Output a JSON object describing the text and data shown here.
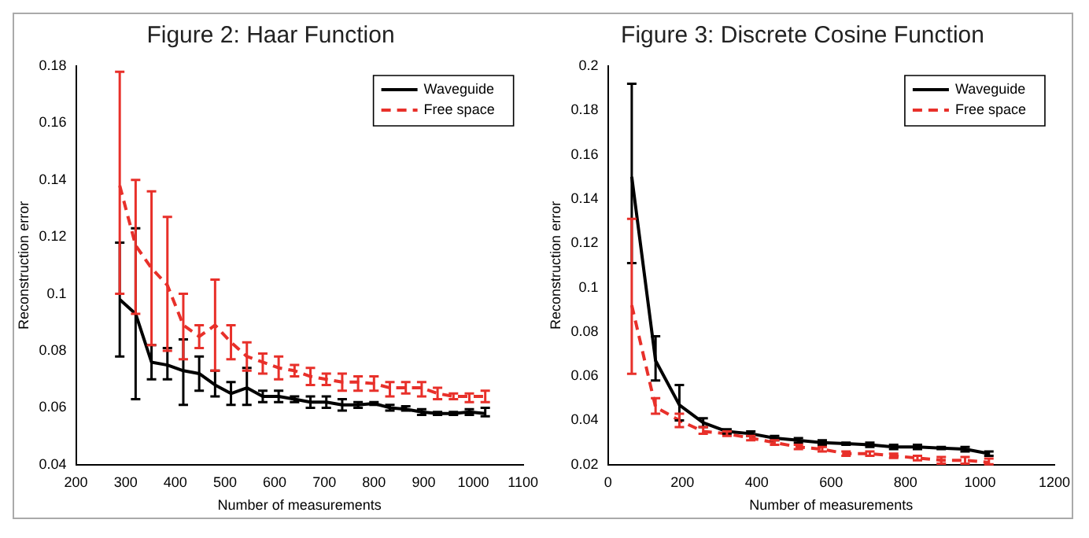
{
  "chart_data": [
    {
      "type": "line",
      "title": "Figure 2: Haar Function",
      "xlabel": "Number of measurements",
      "ylabel": "Reconstruction error",
      "xlim": [
        200,
        1100
      ],
      "xticks": [
        200,
        300,
        400,
        500,
        600,
        700,
        800,
        900,
        1000,
        1100
      ],
      "ylim": [
        0.04,
        0.18
      ],
      "yticks": [
        0.04,
        0.06,
        0.08,
        0.1,
        0.12,
        0.14,
        0.16,
        0.18
      ],
      "grid": false,
      "legend": "top right",
      "marker": "none",
      "x": [
        288,
        320,
        352,
        384,
        416,
        448,
        480,
        512,
        544,
        576,
        608,
        640,
        672,
        704,
        736,
        768,
        800,
        832,
        864,
        896,
        928,
        960,
        992,
        1024
      ],
      "series": [
        {
          "name": "Waveguide",
          "color": "#000000",
          "line_style": "solid",
          "values": [
            0.098,
            0.093,
            0.076,
            0.075,
            0.073,
            0.072,
            0.068,
            0.065,
            0.067,
            0.064,
            0.064,
            0.063,
            0.062,
            0.062,
            0.061,
            0.061,
            0.0615,
            0.06,
            0.0595,
            0.0585,
            0.058,
            0.058,
            0.0585,
            0.058
          ],
          "errors": [
            [
              0.078,
              0.118
            ],
            [
              0.063,
              0.123
            ],
            [
              0.07,
              0.082
            ],
            [
              0.07,
              0.081
            ],
            [
              0.061,
              0.084
            ],
            [
              0.066,
              0.078
            ],
            [
              0.064,
              0.073
            ],
            [
              0.061,
              0.069
            ],
            [
              0.061,
              0.074
            ],
            [
              0.062,
              0.066
            ],
            [
              0.062,
              0.066
            ],
            [
              0.062,
              0.064
            ],
            [
              0.06,
              0.064
            ],
            [
              0.06,
              0.064
            ],
            [
              0.059,
              0.063
            ],
            [
              0.06,
              0.062
            ],
            [
              0.061,
              0.062
            ],
            [
              0.059,
              0.061
            ],
            [
              0.059,
              0.0605
            ],
            [
              0.0575,
              0.0595
            ],
            [
              0.0575,
              0.0585
            ],
            [
              0.0575,
              0.0585
            ],
            [
              0.0575,
              0.0595
            ],
            [
              0.057,
              0.06
            ]
          ]
        },
        {
          "name": "Free space",
          "color": "#e8302a",
          "line_style": "dashed",
          "values": [
            0.138,
            0.117,
            0.109,
            0.103,
            0.089,
            0.085,
            0.089,
            0.083,
            0.078,
            0.076,
            0.074,
            0.073,
            0.071,
            0.07,
            0.069,
            0.069,
            0.0685,
            0.067,
            0.067,
            0.067,
            0.065,
            0.064,
            0.064,
            0.064
          ],
          "errors": [
            [
              0.1,
              0.178
            ],
            [
              0.093,
              0.14
            ],
            [
              0.082,
              0.136
            ],
            [
              0.08,
              0.127
            ],
            [
              0.077,
              0.1
            ],
            [
              0.081,
              0.089
            ],
            [
              0.073,
              0.105
            ],
            [
              0.077,
              0.089
            ],
            [
              0.073,
              0.083
            ],
            [
              0.072,
              0.079
            ],
            [
              0.07,
              0.078
            ],
            [
              0.071,
              0.075
            ],
            [
              0.068,
              0.074
            ],
            [
              0.068,
              0.072
            ],
            [
              0.066,
              0.072
            ],
            [
              0.066,
              0.071
            ],
            [
              0.066,
              0.071
            ],
            [
              0.064,
              0.069
            ],
            [
              0.065,
              0.069
            ],
            [
              0.064,
              0.069
            ],
            [
              0.063,
              0.067
            ],
            [
              0.063,
              0.065
            ],
            [
              0.062,
              0.065
            ],
            [
              0.062,
              0.066
            ]
          ]
        }
      ]
    },
    {
      "type": "line",
      "title": "Figure 3: Discrete Cosine Function",
      "xlabel": "Number of measurements",
      "ylabel": "Reconstruction error",
      "xlim": [
        0,
        1200
      ],
      "xticks": [
        0,
        200,
        400,
        600,
        800,
        1000,
        1200
      ],
      "ylim": [
        0.02,
        0.2
      ],
      "yticks": [
        0.02,
        0.04,
        0.06,
        0.08,
        0.1,
        0.12,
        0.14,
        0.16,
        0.18,
        0.2
      ],
      "grid": false,
      "legend": "top right",
      "marker": "none",
      "x": [
        64,
        128,
        192,
        256,
        320,
        384,
        448,
        512,
        576,
        640,
        704,
        768,
        832,
        896,
        960,
        1024
      ],
      "series": [
        {
          "name": "Waveguide",
          "color": "#000000",
          "line_style": "solid",
          "values": [
            0.15,
            0.067,
            0.047,
            0.039,
            0.035,
            0.034,
            0.032,
            0.031,
            0.03,
            0.0295,
            0.029,
            0.028,
            0.028,
            0.0275,
            0.027,
            0.025
          ],
          "errors": [
            [
              0.111,
              0.192
            ],
            [
              0.058,
              0.078
            ],
            [
              0.04,
              0.056
            ],
            [
              0.037,
              0.041
            ],
            [
              0.034,
              0.036
            ],
            [
              0.033,
              0.035
            ],
            [
              0.031,
              0.033
            ],
            [
              0.03,
              0.032
            ],
            [
              0.029,
              0.031
            ],
            [
              0.029,
              0.03
            ],
            [
              0.028,
              0.03
            ],
            [
              0.027,
              0.029
            ],
            [
              0.027,
              0.029
            ],
            [
              0.027,
              0.028
            ],
            [
              0.026,
              0.028
            ],
            [
              0.024,
              0.026
            ]
          ]
        },
        {
          "name": "Free space",
          "color": "#e8302a",
          "line_style": "dashed",
          "values": [
            0.092,
            0.046,
            0.04,
            0.035,
            0.034,
            0.032,
            0.03,
            0.028,
            0.027,
            0.025,
            0.025,
            0.024,
            0.023,
            0.022,
            0.022,
            0.021
          ],
          "errors": [
            [
              0.061,
              0.131
            ],
            [
              0.043,
              0.05
            ],
            [
              0.037,
              0.043
            ],
            [
              0.034,
              0.037
            ],
            [
              0.033,
              0.035
            ],
            [
              0.031,
              0.033
            ],
            [
              0.029,
              0.031
            ],
            [
              0.027,
              0.029
            ],
            [
              0.026,
              0.028
            ],
            [
              0.024,
              0.026
            ],
            [
              0.024,
              0.026
            ],
            [
              0.023,
              0.025
            ],
            [
              0.022,
              0.024
            ],
            [
              0.0205,
              0.0235
            ],
            [
              0.0205,
              0.0235
            ],
            [
              0.0202,
              0.0228
            ]
          ]
        }
      ]
    }
  ]
}
